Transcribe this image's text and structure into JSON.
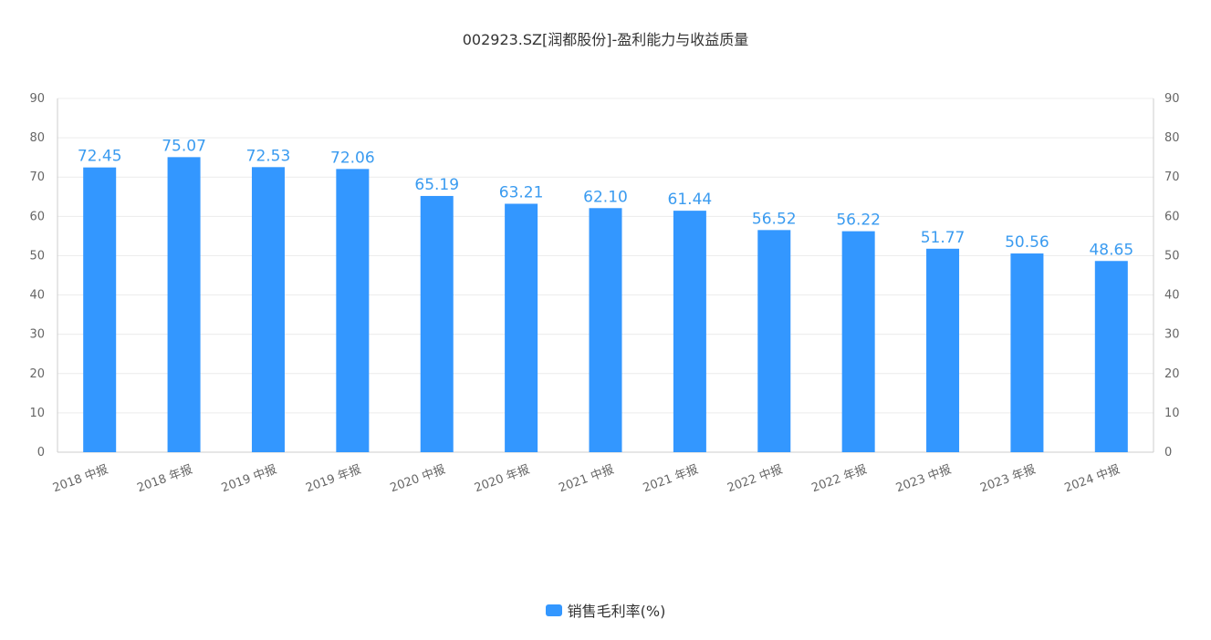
{
  "chart_data": {
    "type": "bar",
    "title": "002923.SZ[润都股份]-盈利能力与收益质量",
    "categories": [
      "2018 中报",
      "2018 年报",
      "2019 中报",
      "2019 年报",
      "2020 中报",
      "2020 年报",
      "2021 中报",
      "2021 年报",
      "2022 中报",
      "2022 年报",
      "2023 中报",
      "2023 年报",
      "2024 中报"
    ],
    "series": [
      {
        "name": "销售毛利率(%)",
        "color": "#3397ff",
        "values": [
          72.45,
          75.07,
          72.53,
          72.06,
          65.19,
          63.21,
          62.1,
          61.44,
          56.52,
          56.22,
          51.77,
          50.56,
          48.65
        ],
        "value_labels": [
          "72.45",
          "75.07",
          "72.53",
          "72.06",
          "65.19",
          "63.21",
          "62.10",
          "61.44",
          "56.52",
          "56.22",
          "51.77",
          "50.56",
          "48.65"
        ]
      }
    ],
    "ylim": [
      0,
      90
    ],
    "y_ticks": [
      0,
      10,
      20,
      30,
      40,
      50,
      60,
      70,
      80,
      90
    ],
    "y2_ticks": [
      0,
      10,
      20,
      30,
      40,
      50,
      60,
      70,
      80,
      90
    ],
    "grid": true,
    "legend_position": "bottom-center"
  }
}
